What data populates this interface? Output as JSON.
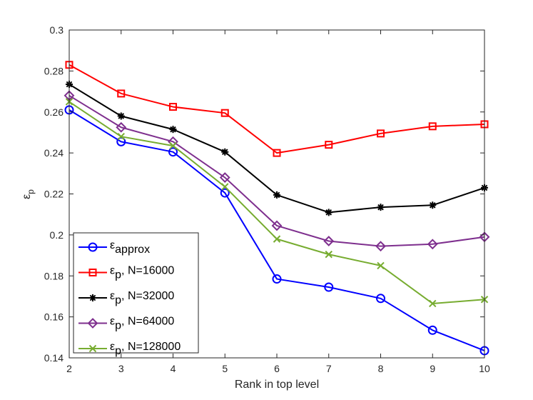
{
  "chart_data": {
    "type": "line",
    "title": "",
    "xlabel": "Rank in top level",
    "ylabel": "εp",
    "ylabel_main": "ε",
    "ylabel_sub": "p",
    "xlim": [
      2,
      10
    ],
    "ylim": [
      0.14,
      0.3
    ],
    "x_ticks": [
      2,
      3,
      4,
      5,
      6,
      7,
      8,
      9,
      10
    ],
    "y_ticks": [
      0.14,
      0.16,
      0.18,
      0.2,
      0.22,
      0.24,
      0.26,
      0.28,
      0.3
    ],
    "x_tick_labels": [
      "2",
      "3",
      "4",
      "5",
      "6",
      "7",
      "8",
      "9",
      "10"
    ],
    "y_tick_labels": [
      "0.14",
      "0.16",
      "0.18",
      "0.2",
      "0.22",
      "0.24",
      "0.26",
      "0.28",
      "0.3"
    ],
    "grid": false,
    "legend_position": "bottom-left",
    "x": [
      2,
      3,
      4,
      5,
      6,
      7,
      8,
      9,
      10
    ],
    "series": [
      {
        "name": "εapprox",
        "symbol": "ε",
        "sub": "approx",
        "suffix": "",
        "color": "#0000ff",
        "marker": "circle",
        "values": [
          0.261,
          0.2455,
          0.2405,
          0.2205,
          0.1785,
          0.1745,
          0.169,
          0.1535,
          0.1435
        ]
      },
      {
        "name": "εp, N=16000",
        "symbol": "ε",
        "sub": "p",
        "suffix": ", N=16000",
        "color": "#ff0000",
        "marker": "square",
        "values": [
          0.283,
          0.269,
          0.2625,
          0.2595,
          0.24,
          0.244,
          0.2495,
          0.253,
          0.254
        ]
      },
      {
        "name": "εp, N=32000",
        "symbol": "ε",
        "sub": "p",
        "suffix": ", N=32000",
        "color": "#000000",
        "marker": "star",
        "values": [
          0.2735,
          0.258,
          0.2515,
          0.2405,
          0.2195,
          0.211,
          0.2135,
          0.2145,
          0.223
        ]
      },
      {
        "name": "εp, N=64000",
        "symbol": "ε",
        "sub": "p",
        "suffix": ", N=64000",
        "color": "#7e2f8e",
        "marker": "diamond",
        "values": [
          0.268,
          0.2525,
          0.2455,
          0.228,
          0.2045,
          0.197,
          0.1945,
          0.1955,
          0.199
        ]
      },
      {
        "name": "εp, N=128000",
        "symbol": "ε",
        "sub": "p",
        "suffix": ", N=128000",
        "color": "#77ac30",
        "marker": "x",
        "values": [
          0.265,
          0.248,
          0.2435,
          0.2235,
          0.198,
          0.1905,
          0.185,
          0.1665,
          0.1685
        ]
      }
    ]
  }
}
